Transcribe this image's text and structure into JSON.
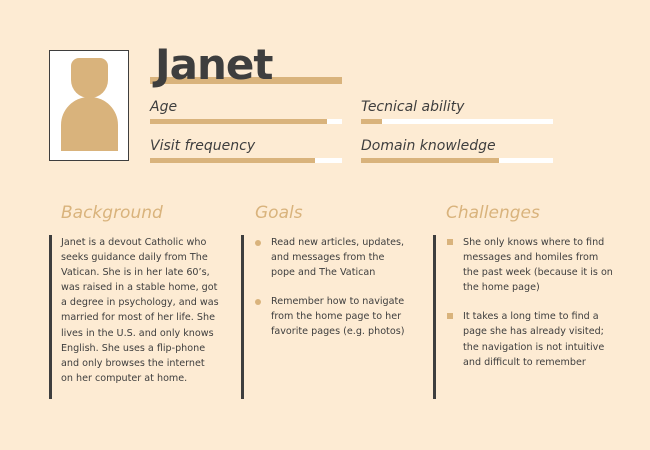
{
  "persona": {
    "name": "Janet",
    "metrics": [
      {
        "label": "Age",
        "level": 0.92
      },
      {
        "label": "Tecnical ability",
        "level": 0.11
      },
      {
        "label": "Visit frequency",
        "level": 0.86
      },
      {
        "label": "Domain knowledge",
        "level": 0.72
      }
    ]
  },
  "background": {
    "title": "Background",
    "text": "Janet is a devout Catholic who seeks guidance daily from The Vatican. She is in her late 60’s, was raised in a stable home, got a degree in psychology, and was married for most of her life. She lives in the U.S. and only knows English. She uses a flip-phone and only browses the internet on her computer at home."
  },
  "goals": {
    "title": "Goals",
    "items": [
      "Read new articles, updates, and messages from the pope and The Vatican",
      "Remember how to navigate from the home page to her favorite pages (e.g. photos)"
    ]
  },
  "challenges": {
    "title": "Challenges",
    "items": [
      "She only knows where to find messages and homiles from the past week (because it is on the home page)",
      "It takes a long time to find a page she has already visited; the navigation is not intuitive and difficult to remember"
    ]
  },
  "colors": {
    "background": "#fdebd3",
    "accent": "#d9b37c",
    "text": "#3e3e3e"
  }
}
